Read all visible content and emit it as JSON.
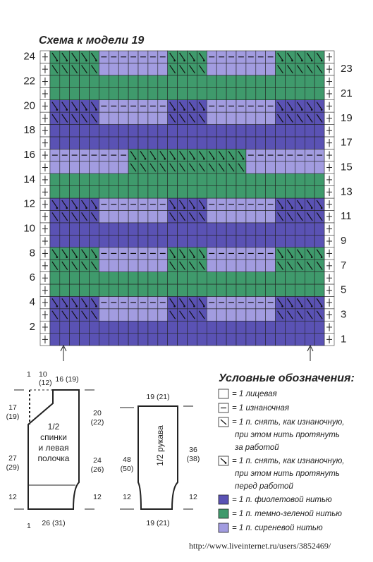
{
  "title": "Схема к модели 19",
  "row_numbers": {
    "left": [
      24,
      22,
      20,
      18,
      16,
      14,
      12,
      10,
      8,
      6,
      4,
      2
    ],
    "right": [
      23,
      21,
      19,
      17,
      15,
      13,
      11,
      9,
      7,
      5,
      3,
      1
    ]
  },
  "schematic": {
    "back": {
      "label": [
        "1/2",
        "спинки",
        "и левая",
        "полочка"
      ],
      "top_edge": "1",
      "neck": "10 (12)",
      "shoulder": "16 (19)",
      "armhole_left": "17 (19)",
      "body_left": "27 (29)",
      "rib_left": "12",
      "armhole_right": "20 (22)",
      "body_right": "24 (26)",
      "rib_right": "12",
      "bottom_edge": "1",
      "width": "26 (31)"
    },
    "sleeve": {
      "label": "1/2 рукава",
      "top": "19 (21)",
      "length_left": "48 (50)",
      "rib_left": "12",
      "length_right": "36 (38)",
      "rib_right": "12",
      "width": "19 (21)"
    }
  },
  "legend": {
    "title": "Условные обозначения:",
    "items": [
      {
        "symbol": "blank",
        "lines": [
          "= 1 лицевая"
        ]
      },
      {
        "symbol": "dash",
        "lines": [
          "= 1 изнаночная"
        ]
      },
      {
        "symbol": "slash",
        "lines": [
          "= 1 п. снять, как изнаночную,",
          "при этом нить протянуть",
          "за работой"
        ]
      },
      {
        "symbol": "slash-dot",
        "lines": [
          "= 1 п. снять, как изнаночную,",
          "при этом нить протянуть",
          "перед работой"
        ]
      },
      {
        "symbol": "purple",
        "lines": [
          "= 1 п. фиолетовой нитью"
        ]
      },
      {
        "symbol": "green",
        "lines": [
          "= 1 п. темно-зеленой нитью"
        ]
      },
      {
        "symbol": "lavender",
        "lines": [
          "= 1 п. сиреневой нитью"
        ]
      }
    ]
  },
  "url": "http://www.liveinternet.ru/users/3852469/"
}
